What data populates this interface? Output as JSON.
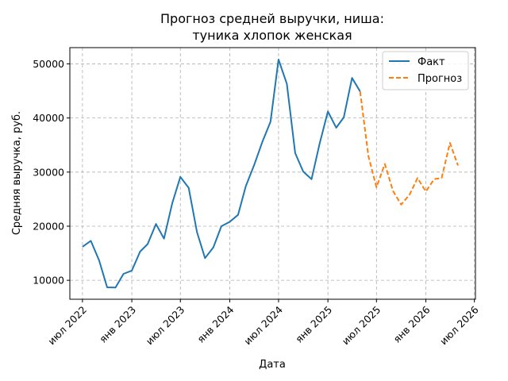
{
  "chart_data": {
    "type": "line",
    "title": [
      "Прогноз средней выручки, ниша:",
      "туника хлопок женская"
    ],
    "xlabel": "Дата",
    "ylabel": "Средняя выручка, руб.",
    "x_ticks": [
      "июл 2022",
      "янв 2023",
      "июл 2023",
      "янв 2024",
      "июл 2024",
      "янв 2025",
      "июл 2025",
      "янв 2026",
      "июл 2026"
    ],
    "y_ticks": [
      10000,
      20000,
      30000,
      40000,
      50000
    ],
    "xlim": [
      "2022-05-15",
      "2026-07-05"
    ],
    "ylim": [
      6500,
      53000
    ],
    "grid": true,
    "legend_position": "top-right",
    "series": [
      {
        "name": "Факт",
        "color": "#1f77b4",
        "style": "solid",
        "x": [
          "2022-07-01",
          "2022-08-01",
          "2022-09-01",
          "2022-10-01",
          "2022-11-01",
          "2022-12-01",
          "2023-01-01",
          "2023-02-01",
          "2023-03-01",
          "2023-04-01",
          "2023-05-01",
          "2023-06-01",
          "2023-07-01",
          "2023-08-01",
          "2023-09-01",
          "2023-10-01",
          "2023-11-01",
          "2023-12-01",
          "2024-01-01",
          "2024-02-01",
          "2024-03-01",
          "2024-04-01",
          "2024-05-01",
          "2024-06-01",
          "2024-07-01",
          "2024-08-01",
          "2024-09-01",
          "2024-10-01",
          "2024-11-01",
          "2024-12-01",
          "2025-01-01",
          "2025-02-01",
          "2025-03-01",
          "2025-04-01",
          "2025-05-01"
        ],
        "y": [
          16200,
          17300,
          13700,
          8700,
          8650,
          11200,
          11800,
          15300,
          16700,
          20400,
          17700,
          24300,
          29100,
          27100,
          18900,
          14100,
          16100,
          20000,
          20800,
          22100,
          27400,
          31300,
          35500,
          39300,
          50800,
          46300,
          33500,
          30100,
          28700,
          35200,
          41200,
          38200,
          40100,
          47400,
          44900
        ]
      },
      {
        "name": "Прогноз",
        "color": "#ff7f0e",
        "style": "dashed",
        "x": [
          "2025-05-01",
          "2025-06-01",
          "2025-07-01",
          "2025-08-01",
          "2025-09-01",
          "2025-10-01",
          "2025-11-01",
          "2025-12-01",
          "2026-01-01",
          "2026-02-01",
          "2026-03-01",
          "2026-04-01",
          "2026-05-01"
        ],
        "y": [
          44900,
          32900,
          27200,
          31500,
          26500,
          24000,
          25800,
          28900,
          26400,
          28700,
          28900,
          35400,
          31200
        ]
      }
    ]
  }
}
